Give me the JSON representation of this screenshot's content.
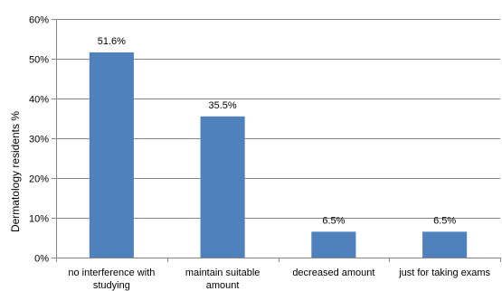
{
  "chart_data": {
    "type": "bar",
    "title": "",
    "xlabel": "",
    "ylabel": "Dermatology residents %",
    "categories": [
      [
        "no interference  with",
        "studying"
      ],
      [
        "maintain suitable",
        "amount"
      ],
      [
        "decreased amount"
      ],
      [
        "just for taking exams"
      ]
    ],
    "values": [
      51.6,
      35.5,
      6.5,
      6.5
    ],
    "data_labels": [
      "51.6%",
      "35.5%",
      "6.5%",
      "6.5%"
    ],
    "ylim": [
      0,
      60
    ],
    "yticks": [
      0,
      10,
      20,
      30,
      40,
      50,
      60
    ],
    "ytick_labels": [
      "0%",
      "10%",
      "20%",
      "30%",
      "40%",
      "50%",
      "60%"
    ],
    "grid": true,
    "legend": "none",
    "colors": {
      "bar": "#4f81bd",
      "grid": "#868686",
      "axis": "#868686"
    }
  }
}
